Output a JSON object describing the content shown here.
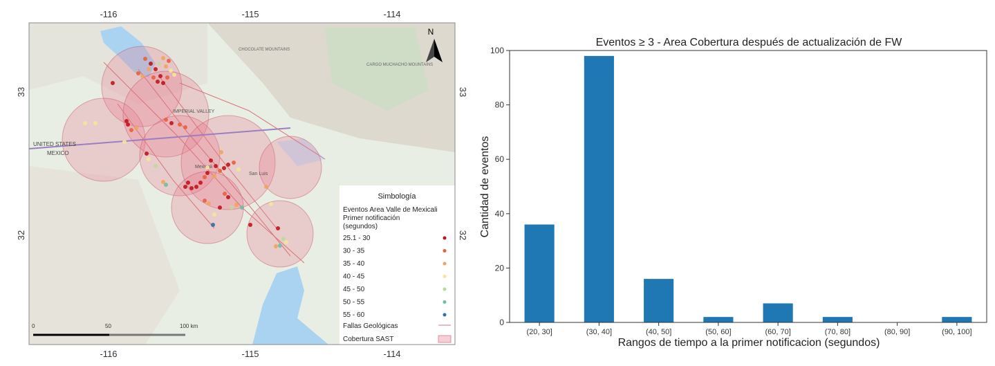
{
  "map": {
    "top_ticks": [
      "-116",
      "-115",
      "-114"
    ],
    "bottom_ticks": [
      "-116",
      "-115",
      "-114"
    ],
    "left_ticks": [
      "33",
      "32"
    ],
    "right_ticks": [
      "33",
      "32"
    ],
    "north_label": "N",
    "country_labels": [
      "UNITED STATES",
      "MEXICO"
    ],
    "place_labels": [
      "IMPERIAL VALLEY",
      "San Luis",
      "Mexicali",
      "CHOCOLATE MOUNTAINS",
      "CARGO MUCHACHO MOUNTAINS"
    ],
    "scale": {
      "labels": [
        "0",
        "50",
        "100 km"
      ]
    },
    "legend": {
      "title": "Simbología",
      "subtitle_lines": [
        "Eventos Area Valle de Mexicali",
        "Primer notificación",
        "(segundos)"
      ],
      "items": [
        {
          "label": "25.1 - 30",
          "color": "#c0151b"
        },
        {
          "label": "30 - 35",
          "color": "#e8603b"
        },
        {
          "label": "35 - 40",
          "color": "#f2a45a"
        },
        {
          "label": "40 - 45",
          "color": "#f5e49a"
        },
        {
          "label": "45 - 50",
          "color": "#bcd99a"
        },
        {
          "label": "50 - 55",
          "color": "#6cbfa6"
        },
        {
          "label": "55 - 60",
          "color": "#2f6fa8"
        }
      ],
      "faults_label": "Fallas Geológicas",
      "coverage_label": "Cobertura SAST"
    }
  },
  "chart_data": {
    "type": "bar",
    "title": "Eventos ≥ 3 - Area Cobertura después de actualización de FW",
    "xlabel": "Rangos de tiempo a la primer notificacion (segundos)",
    "ylabel": "Cantidad de eventos",
    "categories": [
      "(20, 30]",
      "(30, 40]",
      "(40, 50]",
      "(50, 60]",
      "(60, 70]",
      "(70, 80]",
      "(80, 90]",
      "(90, 100]"
    ],
    "values": [
      36,
      98,
      16,
      2,
      7,
      2,
      0,
      2
    ],
    "ylim": [
      0,
      100
    ],
    "yticks": [
      0,
      20,
      40,
      60,
      80,
      100
    ],
    "bar_color": "#1f77b4",
    "grid": false
  }
}
